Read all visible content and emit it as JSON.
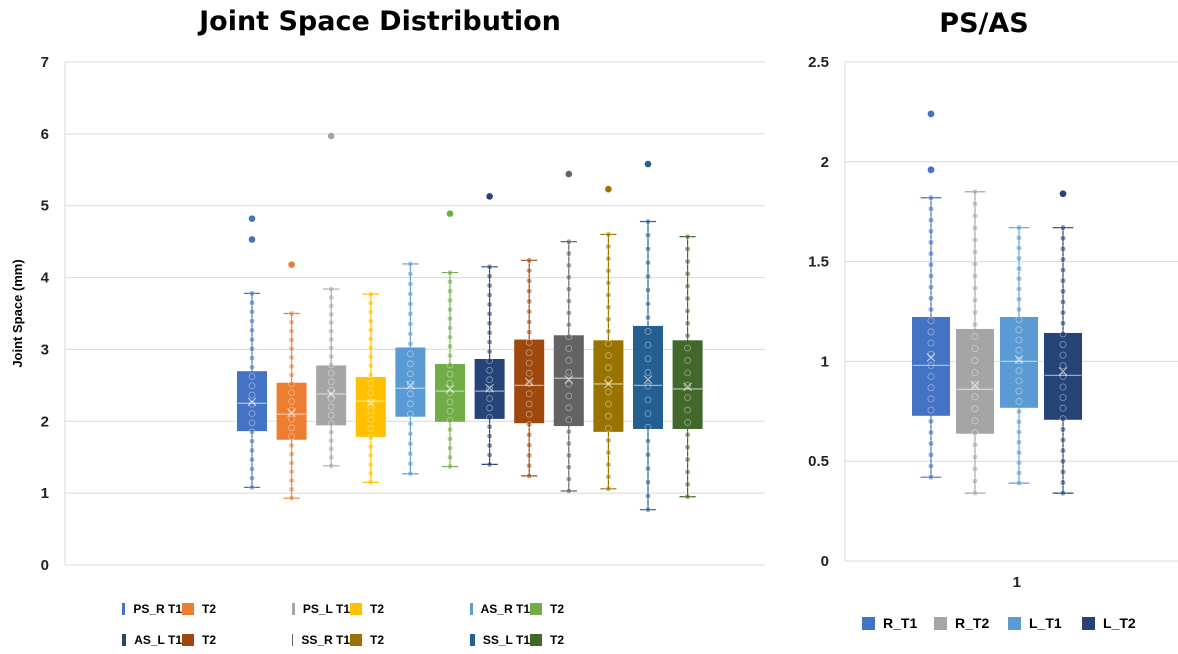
{
  "chart_data": [
    {
      "type": "box",
      "title": "Joint Space Distribution",
      "ylabel": "Joint Space (mm)",
      "ylim": [
        0,
        7
      ],
      "yticks": [
        "0",
        "1",
        "2",
        "3",
        "4",
        "5",
        "6",
        "7"
      ],
      "grid": true,
      "legend_position": "bottom",
      "series": [
        {
          "name": "PS_R T1",
          "color": "#4472C4",
          "min": 1.08,
          "q1": 1.87,
          "median": 2.25,
          "mean": 2.27,
          "q3": 2.69,
          "max": 3.78,
          "outliers": [
            4.53,
            4.82
          ]
        },
        {
          "name": "T2",
          "color": "#ED7D31",
          "min": 0.93,
          "q1": 1.75,
          "median": 2.1,
          "mean": 2.12,
          "q3": 2.53,
          "max": 3.5,
          "outliers": [
            4.18
          ]
        },
        {
          "name": "PS_L T1",
          "color": "#A5A5A5",
          "min": 1.38,
          "q1": 1.95,
          "median": 2.38,
          "mean": 2.38,
          "q3": 2.77,
          "max": 3.84,
          "outliers": [
            5.97
          ]
        },
        {
          "name": "T2",
          "color": "#FFC000",
          "min": 1.15,
          "q1": 1.79,
          "median": 2.28,
          "mean": 2.25,
          "q3": 2.61,
          "max": 3.77,
          "outliers": []
        },
        {
          "name": "AS_R T1",
          "color": "#5B9BD5",
          "min": 1.27,
          "q1": 2.07,
          "median": 2.46,
          "mean": 2.5,
          "q3": 3.02,
          "max": 4.19,
          "outliers": []
        },
        {
          "name": "T2",
          "color": "#70AD47",
          "min": 1.37,
          "q1": 2.0,
          "median": 2.42,
          "mean": 2.45,
          "q3": 2.79,
          "max": 4.07,
          "outliers": [
            4.89
          ]
        },
        {
          "name": "AS_L T1",
          "color": "#264478",
          "min": 1.4,
          "q1": 2.04,
          "median": 2.42,
          "mean": 2.46,
          "q3": 2.86,
          "max": 4.15,
          "outliers": [
            5.13
          ]
        },
        {
          "name": "T2",
          "color": "#9E480E",
          "min": 1.24,
          "q1": 1.98,
          "median": 2.5,
          "mean": 2.55,
          "q3": 3.13,
          "max": 4.24,
          "outliers": []
        },
        {
          "name": "SS_R T1",
          "color": "#636363",
          "min": 1.03,
          "q1": 1.94,
          "median": 2.6,
          "mean": 2.58,
          "q3": 3.19,
          "max": 4.5,
          "outliers": [
            5.44
          ]
        },
        {
          "name": "T2",
          "color": "#997300",
          "min": 1.06,
          "q1": 1.86,
          "median": 2.52,
          "mean": 2.52,
          "q3": 3.12,
          "max": 4.6,
          "outliers": [
            5.23
          ]
        },
        {
          "name": "SS_L T1",
          "color": "#255E91",
          "min": 0.77,
          "q1": 1.9,
          "median": 2.5,
          "mean": 2.58,
          "q3": 3.32,
          "max": 4.78,
          "outliers": [
            5.58
          ]
        },
        {
          "name": "T2",
          "color": "#43682B",
          "min": 0.95,
          "q1": 1.9,
          "median": 2.45,
          "mean": 2.48,
          "q3": 3.12,
          "max": 4.57,
          "outliers": []
        }
      ]
    },
    {
      "type": "box",
      "title": "PS/AS",
      "ylabel": "",
      "ylim": [
        0,
        2.5
      ],
      "yticks": [
        "0",
        "0.5",
        "1",
        "1.5",
        "2",
        "2.5"
      ],
      "categories": [
        "1"
      ],
      "grid": true,
      "legend_position": "bottom",
      "series": [
        {
          "name": "R_T1",
          "color": "#4472C4",
          "min": 0.42,
          "q1": 0.73,
          "median": 0.98,
          "mean": 1.02,
          "q3": 1.22,
          "max": 1.82,
          "outliers": [
            1.96,
            2.24
          ]
        },
        {
          "name": "R_T2",
          "color": "#A5A5A5",
          "min": 0.34,
          "q1": 0.64,
          "median": 0.86,
          "mean": 0.88,
          "q3": 1.16,
          "max": 1.85,
          "outliers": []
        },
        {
          "name": "L_T1",
          "color": "#5B9BD5",
          "min": 0.39,
          "q1": 0.77,
          "median": 1.0,
          "mean": 1.01,
          "q3": 1.22,
          "max": 1.67,
          "outliers": []
        },
        {
          "name": "L_T2",
          "color": "#264478",
          "min": 0.34,
          "q1": 0.71,
          "median": 0.93,
          "mean": 0.95,
          "q3": 1.14,
          "max": 1.67,
          "outliers": [
            1.84
          ]
        }
      ]
    }
  ]
}
